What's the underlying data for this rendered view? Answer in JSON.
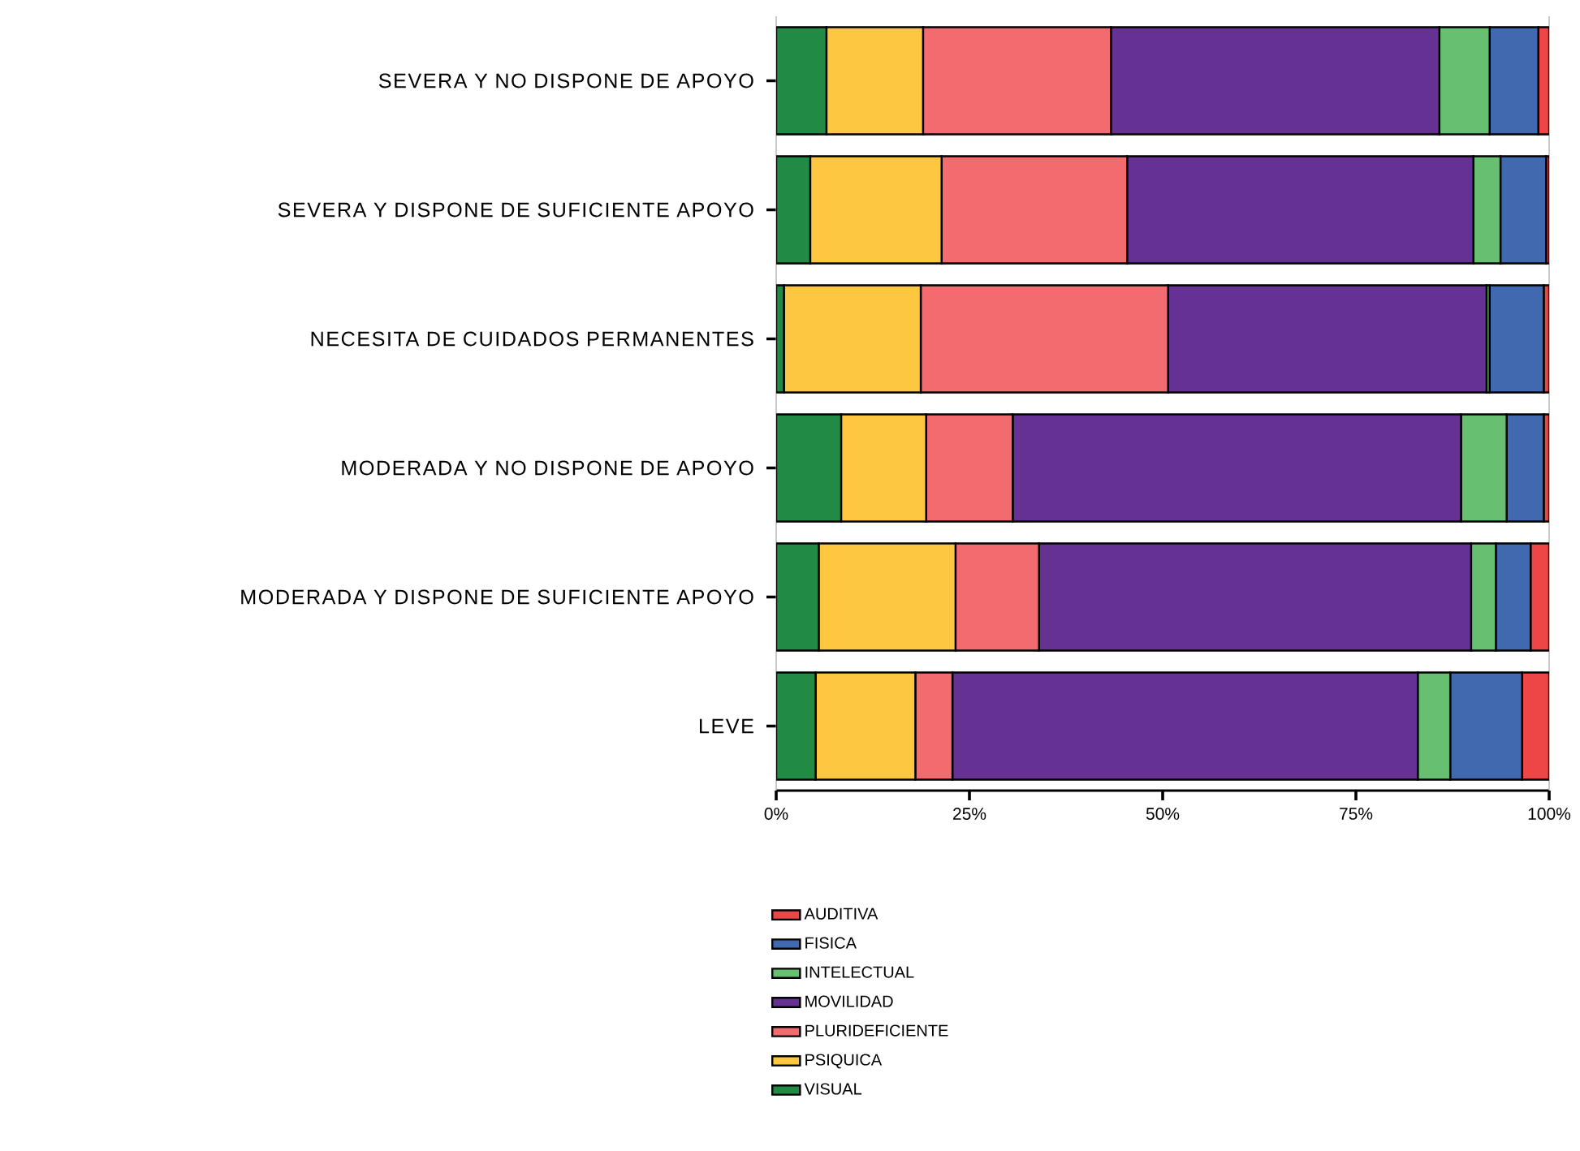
{
  "chart_data": {
    "type": "bar",
    "orientation": "horizontal",
    "stacked": true,
    "categories": [
      "SEVERA Y NO DISPONE DE APOYO",
      "SEVERA Y DISPONE DE SUFICIENTE APOYO",
      "NECESITA DE CUIDADOS PERMANENTES",
      "MODERADA Y NO DISPONE DE APOYO",
      "MODERADA Y DISPONE DE SUFICIENTE APOYO",
      "LEVE"
    ],
    "series": [
      {
        "name": "VISUAL",
        "color": "#218a44",
        "values": [
          6.5,
          4.4,
          1.0,
          8.4,
          5.5,
          5.1
        ]
      },
      {
        "name": "PSIQUICA",
        "color": "#fdc840",
        "values": [
          12.5,
          17.0,
          17.7,
          11.0,
          17.7,
          12.9
        ]
      },
      {
        "name": "PLURIDEFICIENTE",
        "color": "#f26b6e",
        "values": [
          24.3,
          24.0,
          32.0,
          11.2,
          10.8,
          4.8
        ]
      },
      {
        "name": "MOVILIDAD",
        "color": "#653293",
        "values": [
          42.5,
          44.8,
          41.2,
          58.0,
          55.9,
          60.2
        ]
      },
      {
        "name": "INTELECTUAL",
        "color": "#67bf72",
        "values": [
          6.5,
          3.5,
          0.4,
          5.9,
          3.2,
          4.2
        ]
      },
      {
        "name": "FISICA",
        "color": "#4169b0",
        "values": [
          6.3,
          5.9,
          7.0,
          4.8,
          4.5,
          9.3
        ]
      },
      {
        "name": "AUDITIVA",
        "color": "#ee4647",
        "values": [
          1.4,
          0.4,
          0.7,
          0.7,
          2.4,
          3.5
        ]
      }
    ],
    "xlim": [
      0,
      100
    ],
    "xticks": [
      {
        "value": 0,
        "label": "0%"
      },
      {
        "value": 25,
        "label": "25%"
      },
      {
        "value": 50,
        "label": "50%"
      },
      {
        "value": 75,
        "label": "75%"
      },
      {
        "value": 100,
        "label": "100%"
      }
    ],
    "legend": "bottom"
  }
}
